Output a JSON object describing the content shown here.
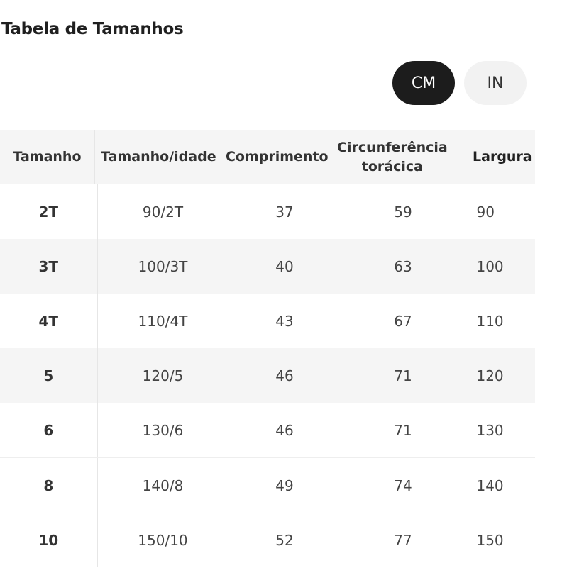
{
  "title": "Tabela de Tamanhos",
  "units": {
    "cm_label": "CM",
    "in_label": "IN",
    "selected": "CM"
  },
  "table": {
    "headers": [
      "Tamanho",
      "Tamanho/idade",
      "Comprimento",
      "Circunferência\ntorácica",
      "Largura"
    ],
    "rows": [
      [
        "2T",
        "90/2T",
        "37",
        "59",
        "90"
      ],
      [
        "3T",
        "100/3T",
        "40",
        "63",
        "100"
      ],
      [
        "4T",
        "110/4T",
        "43",
        "67",
        "110"
      ],
      [
        "5",
        "120/5",
        "46",
        "71",
        "120"
      ],
      [
        "6",
        "130/6",
        "46",
        "71",
        "130"
      ],
      [
        "8",
        "140/8",
        "49",
        "74",
        "140"
      ],
      [
        "10",
        "150/10",
        "52",
        "77",
        "150"
      ]
    ]
  },
  "colors": {
    "selected_bg": "#1c1c1c",
    "unselected_bg": "#f2f2f2",
    "row_shade": "#f5f5f5"
  }
}
